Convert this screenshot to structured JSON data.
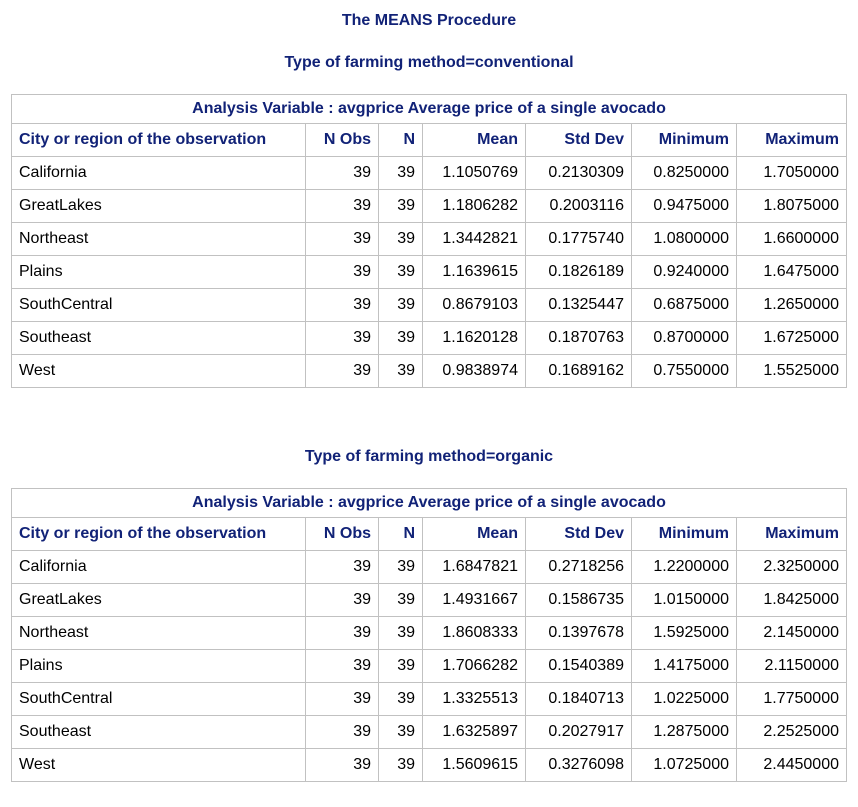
{
  "procedure_title": "The MEANS Procedure",
  "groups": [
    {
      "by_title": "Type of farming method=conventional",
      "analysis_variable": "Analysis Variable : avgprice Average price of a single avocado",
      "columns": [
        "City or region of the observation",
        "N Obs",
        "N",
        "Mean",
        "Std Dev",
        "Minimum",
        "Maximum"
      ],
      "rows": [
        [
          "California",
          "39",
          "39",
          "1.1050769",
          "0.2130309",
          "0.8250000",
          "1.7050000"
        ],
        [
          "GreatLakes",
          "39",
          "39",
          "1.1806282",
          "0.2003116",
          "0.9475000",
          "1.8075000"
        ],
        [
          "Northeast",
          "39",
          "39",
          "1.3442821",
          "0.1775740",
          "1.0800000",
          "1.6600000"
        ],
        [
          "Plains",
          "39",
          "39",
          "1.1639615",
          "0.1826189",
          "0.9240000",
          "1.6475000"
        ],
        [
          "SouthCentral",
          "39",
          "39",
          "0.8679103",
          "0.1325447",
          "0.6875000",
          "1.2650000"
        ],
        [
          "Southeast",
          "39",
          "39",
          "1.1620128",
          "0.1870763",
          "0.8700000",
          "1.6725000"
        ],
        [
          "West",
          "39",
          "39",
          "0.9838974",
          "0.1689162",
          "0.7550000",
          "1.5525000"
        ]
      ]
    },
    {
      "by_title": "Type of farming method=organic",
      "analysis_variable": "Analysis Variable : avgprice Average price of a single avocado",
      "columns": [
        "City or region of the observation",
        "N Obs",
        "N",
        "Mean",
        "Std Dev",
        "Minimum",
        "Maximum"
      ],
      "rows": [
        [
          "California",
          "39",
          "39",
          "1.6847821",
          "0.2718256",
          "1.2200000",
          "2.3250000"
        ],
        [
          "GreatLakes",
          "39",
          "39",
          "1.4931667",
          "0.1586735",
          "1.0150000",
          "1.8425000"
        ],
        [
          "Northeast",
          "39",
          "39",
          "1.8608333",
          "0.1397678",
          "1.5925000",
          "2.1450000"
        ],
        [
          "Plains",
          "39",
          "39",
          "1.7066282",
          "0.1540389",
          "1.4175000",
          "2.1150000"
        ],
        [
          "SouthCentral",
          "39",
          "39",
          "1.3325513",
          "0.1840713",
          "1.0225000",
          "1.7750000"
        ],
        [
          "Southeast",
          "39",
          "39",
          "1.6325897",
          "0.2027917",
          "1.2875000",
          "2.2525000"
        ],
        [
          "West",
          "39",
          "39",
          "1.5609615",
          "0.3276098",
          "1.0725000",
          "2.4450000"
        ]
      ]
    }
  ]
}
